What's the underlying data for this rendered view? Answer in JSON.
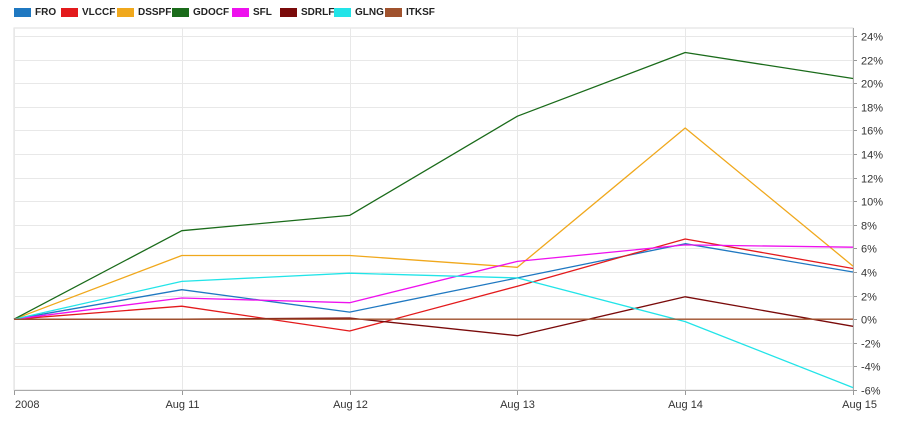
{
  "chart_data": {
    "type": "line",
    "title": "",
    "xlabel": "",
    "ylabel": "",
    "x": [
      "2008",
      "Aug 11",
      "Aug 12",
      "Aug 13",
      "Aug 14",
      "Aug 15"
    ],
    "ylim": [
      -6,
      24
    ],
    "yticks": [
      -6,
      -4,
      -2,
      0,
      2,
      4,
      6,
      8,
      10,
      12,
      14,
      16,
      18,
      20,
      22,
      24
    ],
    "ytick_labels": [
      "-6%",
      "-4%",
      "-2%",
      "0%",
      "2%",
      "4%",
      "6%",
      "8%",
      "10%",
      "12%",
      "14%",
      "16%",
      "18%",
      "20%",
      "22%",
      "24%"
    ],
    "grid": true,
    "legend_position": "top-left",
    "series": [
      {
        "name": "FRO",
        "color": "#1f78c1",
        "values": [
          0,
          2.5,
          0.6,
          3.5,
          6.4,
          4.0
        ]
      },
      {
        "name": "VLCCF",
        "color": "#e31a1c",
        "values": [
          0,
          1.1,
          -1.0,
          2.8,
          6.8,
          4.3
        ]
      },
      {
        "name": "DSSPF",
        "color": "#f0a81c",
        "values": [
          0,
          5.4,
          5.4,
          4.4,
          16.2,
          4.5
        ]
      },
      {
        "name": "GDOCF",
        "color": "#1a6b1a",
        "values": [
          0,
          7.5,
          8.8,
          17.2,
          22.6,
          20.4
        ]
      },
      {
        "name": "SFL",
        "color": "#ee11ee",
        "values": [
          0,
          1.8,
          1.4,
          4.9,
          6.3,
          6.1
        ]
      },
      {
        "name": "SDRLF",
        "color": "#7a0a0a",
        "values": [
          0,
          0,
          0.1,
          -1.4,
          1.9,
          -0.6
        ]
      },
      {
        "name": "GLNG",
        "color": "#22e4e8",
        "values": [
          0,
          3.2,
          3.9,
          3.5,
          -0.2,
          -5.8
        ]
      },
      {
        "name": "ITKSF",
        "color": "#a0522d",
        "values": [
          0,
          0,
          0,
          0,
          0,
          0
        ]
      }
    ]
  }
}
